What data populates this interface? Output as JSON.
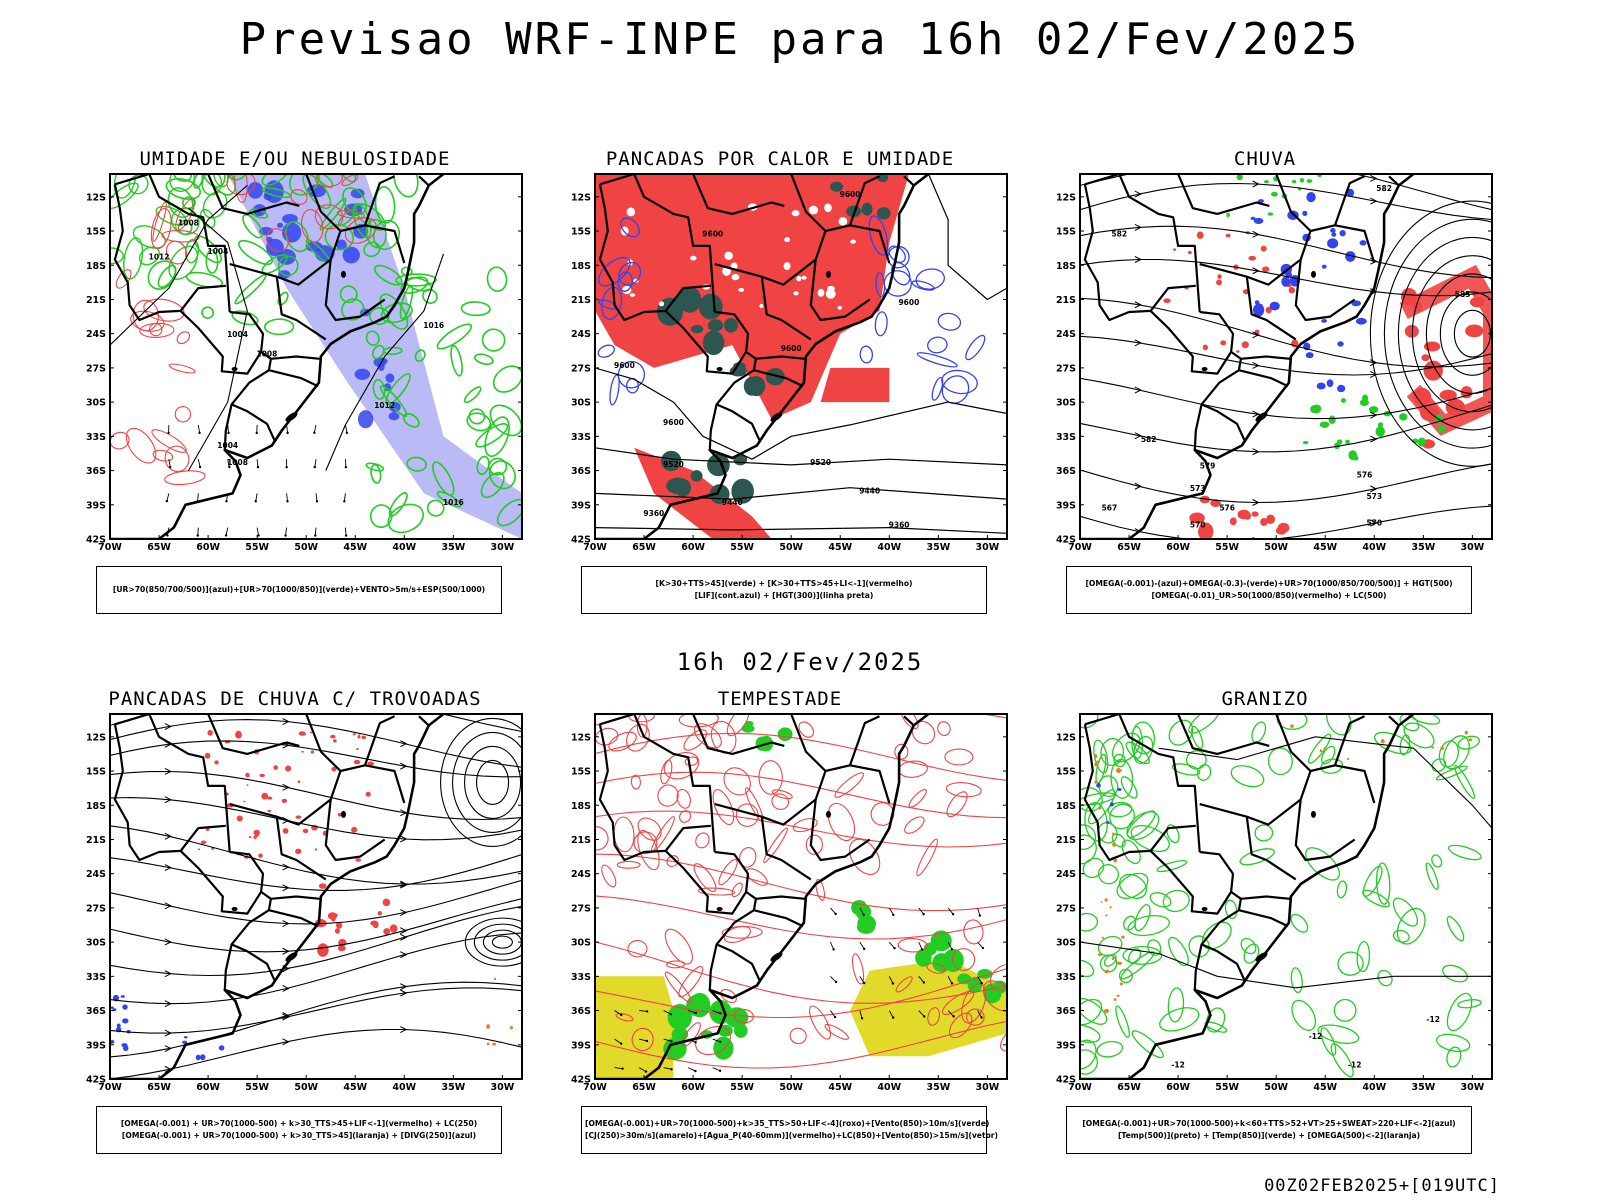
{
  "page": {
    "title": "Previsao WRF-INPE  para 16h 02/Fev/2025",
    "mid_label": "16h 02/Fev/2025",
    "footer": "00Z02FEB2025+[019UTC]"
  },
  "colors": {
    "red": "#f04444",
    "green": "#22cc22",
    "blue": "#3344ee",
    "lightblue": "#a9a9f5",
    "darkteal": "#2e5650",
    "yellow": "#e2da2a",
    "orange": "#f07822",
    "black": "#000000"
  },
  "panels": [
    {
      "title": "UMIDADE E/OU NEBULOSIDADE",
      "legend": [
        "[UR>70(850/700/500)](azul)+[UR>70(1000/850)](verde)+VENTO>5m/s+ESP(500/1000)"
      ],
      "contour_labels": [
        "1008",
        "1004",
        "1012",
        "1004",
        "1008",
        "1016",
        "1012",
        "1004",
        "1008",
        "1016"
      ]
    },
    {
      "title": "PANCADAS POR CALOR E UMIDADE",
      "legend": [
        "[K>30+TTS>45](verde) + [K>30+TTS>45+LI<-1](vermelho)",
        "[LIF](cont.azul) + [HGT(300)](linha preta)"
      ],
      "contour_labels": [
        "9600",
        "9600",
        "9600",
        "9600",
        "9600",
        "9520",
        "9440",
        "9360",
        "9360",
        "9440",
        "9520",
        "9600"
      ]
    },
    {
      "title": "CHUVA",
      "legend": [
        "[OMEGA(-0.001)-(azul)+OMEGA(-0.3)-(verde)+UR>70(1000/850/700/500)] + HGT(500)",
        "[OMEGA(-0.01)_UR>50(1000/850)(vermelho) + LC(500)"
      ],
      "contour_labels": [
        "582",
        "585",
        "582",
        "582",
        "579",
        "576",
        "573",
        "570",
        "567",
        "573",
        "576",
        "570"
      ]
    },
    {
      "title": "PANCADAS DE CHUVA C/ TROVOADAS",
      "legend": [
        "[OMEGA(-0.001) + UR>70(1000-500) + k>30_TTS>45+LIF<-1](vermelho) + LC(250)",
        "[OMEGA(-0.001) + UR>70(1000-500) + k>30_TTS>45](laranja) + [DIVG(250)](azul)"
      ],
      "contour_labels": []
    },
    {
      "title": "TEMPESTADE",
      "legend": [
        "[OMEGA(-0.001)+UR>70(1000-500)+k>35_TTS>50+LIF<-4](roxo)+[Vento(850)>10m/s](verde)",
        "[CJ(250)>30m/s](amarelo)+[Agua_P(40-60mm)](vermelho)+LC(850)+[Vento(850)>15m/s](vetor)"
      ],
      "contour_labels": []
    },
    {
      "title": "GRANIZO",
      "legend": [
        "[OMEGA(-0.001)+UR>70(1000-500)+k<60+TTS>52+VT>25+SWEAT>220+LIF<-2](azul)",
        "[Temp(500)](preto) + [Temp(850)](verde) + [OMEGA(500)<-2](laranja)"
      ],
      "contour_labels": [
        "-12",
        "-12",
        "-12",
        "-12"
      ]
    }
  ],
  "chart_data": {
    "type": "map",
    "region": "South America",
    "lat_ticks": [
      "12S",
      "15S",
      "18S",
      "21S",
      "24S",
      "27S",
      "30S",
      "33S",
      "36S",
      "39S",
      "42S"
    ],
    "lon_ticks": [
      "70W",
      "65W",
      "60W",
      "55W",
      "50W",
      "45W",
      "40W",
      "35W",
      "30W"
    ],
    "lat_range": [
      -42,
      -10
    ],
    "lon_range": [
      -70,
      -28
    ],
    "valid_time": "16h 02/Fev/2025",
    "init": "00Z02FEB2025",
    "lead": "019UTC"
  }
}
